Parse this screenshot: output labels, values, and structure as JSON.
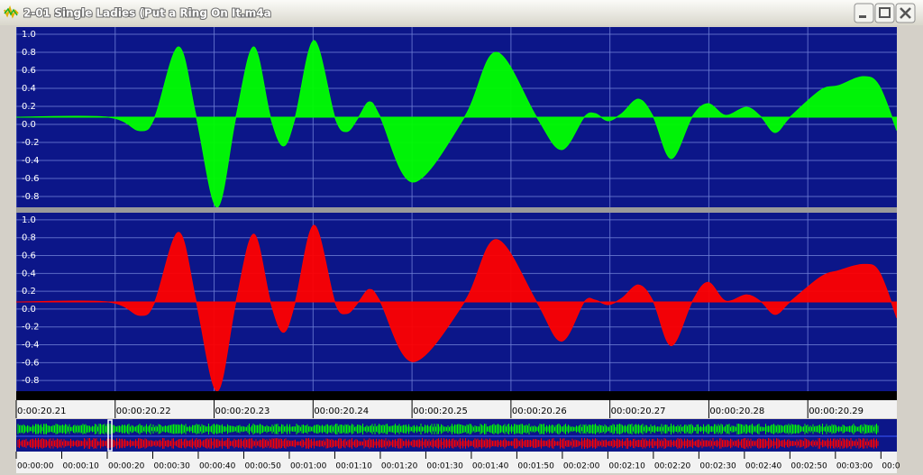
{
  "window": {
    "title": "2-01 Single Ladies (Put a Ring On It.m4a"
  },
  "chart_data": [
    {
      "type": "area",
      "color": "#00ff00",
      "baseline": 0.08,
      "x": [
        20.21,
        20.2193,
        20.2225,
        20.224,
        20.2264,
        20.2282,
        20.2303,
        20.2322,
        20.234,
        20.2357,
        20.237,
        20.2382,
        20.2401,
        20.2422,
        20.2434,
        20.2446,
        20.2457,
        20.2468,
        20.2501,
        20.2553,
        20.2585,
        20.2626,
        20.2651,
        20.2674,
        20.2685,
        20.2698,
        20.2712,
        20.2729,
        20.2744,
        20.2762,
        20.2783,
        20.2799,
        20.2817,
        20.2838,
        20.2853,
        20.2867,
        20.2882,
        20.2913,
        20.2931,
        20.2956,
        20.2972,
        20.299
      ],
      "values": [
        0.08,
        0.08,
        -0.07,
        0.08,
        0.86,
        0.08,
        -0.92,
        0.08,
        0.86,
        0.08,
        -0.24,
        0.08,
        0.93,
        0.08,
        -0.08,
        0.08,
        0.25,
        0.08,
        -0.64,
        0.08,
        0.8,
        0.08,
        -0.28,
        0.08,
        0.12,
        0.04,
        0.12,
        0.28,
        0.08,
        -0.38,
        0.08,
        0.23,
        0.1,
        0.19,
        0.08,
        -0.09,
        0.08,
        0.38,
        0.43,
        0.53,
        0.43,
        -0.07
      ],
      "xlim": [
        20.21,
        20.299
      ],
      "ylim": [
        -0.92,
        1.08
      ],
      "yticks": [
        {
          "value": 1,
          "label": "1.0"
        },
        0.8,
        0.6,
        0.4,
        0.2,
        {
          "value": 0,
          "label": "0.0"
        },
        -0.2,
        -0.4,
        -0.6,
        -0.8
      ],
      "grid": true
    },
    {
      "type": "area",
      "color": "#ff0000",
      "baseline": 0.08,
      "x": [
        20.21,
        20.2193,
        20.2225,
        20.224,
        20.2264,
        20.2282,
        20.2303,
        20.2322,
        20.234,
        20.2357,
        20.237,
        20.2382,
        20.2401,
        20.2422,
        20.2434,
        20.2446,
        20.2457,
        20.2468,
        20.2501,
        20.2553,
        20.2585,
        20.2626,
        20.2651,
        20.2674,
        20.2685,
        20.2698,
        20.2712,
        20.2729,
        20.2744,
        20.2762,
        20.2783,
        20.2799,
        20.2817,
        20.2838,
        20.2853,
        20.2867,
        20.2882,
        20.2913,
        20.2931,
        20.2956,
        20.2972,
        20.299
      ],
      "values": [
        0.08,
        0.08,
        -0.07,
        0.08,
        0.86,
        0.08,
        -0.92,
        0.08,
        0.84,
        0.08,
        -0.26,
        0.08,
        0.94,
        0.08,
        -0.05,
        0.08,
        0.22,
        0.08,
        -0.59,
        0.08,
        0.78,
        0.08,
        -0.36,
        0.08,
        0.1,
        0.05,
        0.12,
        0.27,
        0.08,
        -0.41,
        0.08,
        0.3,
        0.09,
        0.16,
        0.08,
        -0.06,
        0.08,
        0.36,
        0.43,
        0.5,
        0.42,
        -0.1
      ],
      "xlim": [
        20.21,
        20.299
      ],
      "ylim": [
        -0.92,
        1.08
      ],
      "yticks": [
        {
          "value": 1,
          "label": "1.0"
        },
        0.8,
        0.6,
        0.4,
        0.2,
        {
          "value": 0,
          "label": "0.0"
        },
        -0.2,
        -0.4,
        -0.6,
        -0.8
      ],
      "xticks": [
        {
          "value": 20.21,
          "label": "0:00:20.21"
        },
        {
          "value": 20.22,
          "label": "00:00:20.22"
        },
        {
          "value": 20.23,
          "label": "00:00:20.23"
        },
        {
          "value": 20.24,
          "label": "00:00:20.24"
        },
        {
          "value": 20.25,
          "label": "00:00:20.25"
        },
        {
          "value": 20.26,
          "label": "00:00:20.26"
        },
        {
          "value": 20.27,
          "label": "00:00:20.27"
        },
        {
          "value": 20.28,
          "label": "00:00:20.28"
        },
        {
          "value": 20.29,
          "label": "00:00:20.29"
        }
      ],
      "grid": true
    }
  ],
  "overview": {
    "xlim": [
      0,
      193.5
    ],
    "xticks": [
      {
        "value": 0,
        "label": "00:00:00"
      },
      {
        "value": 10,
        "label": "00:00:10"
      },
      {
        "value": 20,
        "label": "00:00:20"
      },
      {
        "value": 30,
        "label": "00:00:30"
      },
      {
        "value": 40,
        "label": "00:00:40"
      },
      {
        "value": 50,
        "label": "00:00:50"
      },
      {
        "value": 60,
        "label": "00:01:00"
      },
      {
        "value": 70,
        "label": "00:01:10"
      },
      {
        "value": 80,
        "label": "00:01:20"
      },
      {
        "value": 90,
        "label": "00:01:30"
      },
      {
        "value": 100,
        "label": "00:01:40"
      },
      {
        "value": 110,
        "label": "00:01:50"
      },
      {
        "value": 120,
        "label": "00:02:00"
      },
      {
        "value": 130,
        "label": "00:02:10"
      },
      {
        "value": 140,
        "label": "00:02:20"
      },
      {
        "value": 150,
        "label": "00:02:30"
      },
      {
        "value": 160,
        "label": "00:02:40"
      },
      {
        "value": 170,
        "label": "00:02:50"
      },
      {
        "value": 180,
        "label": "00:03:00"
      },
      {
        "value": 190,
        "label": "00:0"
      }
    ]
  }
}
